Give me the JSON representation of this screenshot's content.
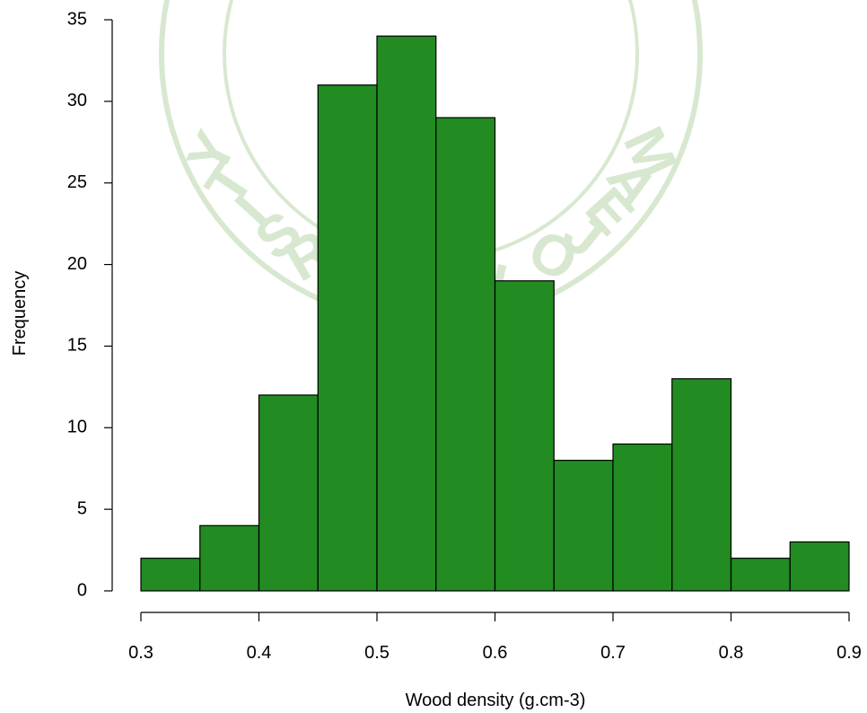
{
  "chart_data": {
    "type": "bar",
    "subtype": "histogram",
    "bin_edges": [
      0.3,
      0.35,
      0.4,
      0.45,
      0.5,
      0.55,
      0.6,
      0.65,
      0.7,
      0.75,
      0.8,
      0.85,
      0.9
    ],
    "values": [
      2,
      4,
      12,
      31,
      34,
      29,
      19,
      8,
      9,
      13,
      2,
      3
    ],
    "xlabel": "Wood density (g.cm-3)",
    "ylabel": "Frequency",
    "xlim": [
      0.3,
      0.9
    ],
    "ylim": [
      0,
      35
    ],
    "x_ticks": [
      "0.3",
      "0.4",
      "0.5",
      "0.6",
      "0.7",
      "0.8",
      "0.9"
    ],
    "y_ticks": [
      "0",
      "5",
      "10",
      "15",
      "20",
      "25",
      "30",
      "35"
    ],
    "bar_color": "#228B22",
    "grid": false
  },
  "watermark": {
    "text": "MAEJO UNIVERSITY",
    "color": "#d8e8d0"
  }
}
